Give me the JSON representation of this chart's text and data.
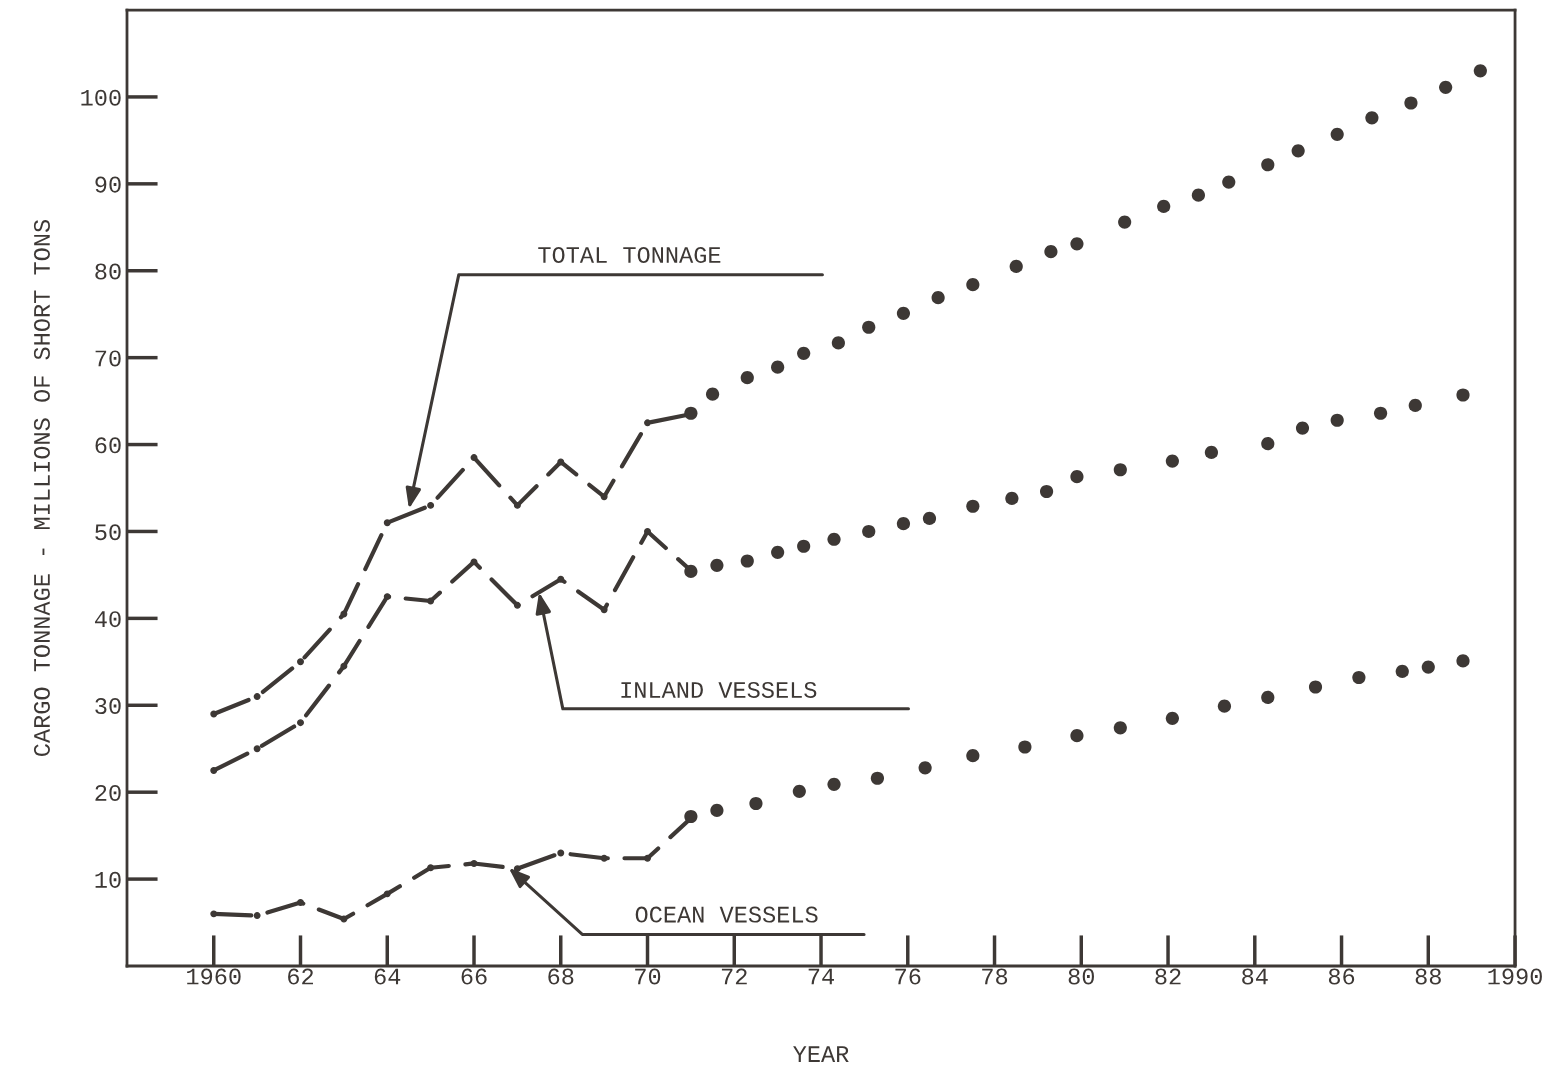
{
  "chart_data": {
    "type": "line",
    "xlabel": "YEAR",
    "ylabel": "CARGO TONNAGE - MILLIONS OF SHORT TONS",
    "xlim": [
      1958,
      1990
    ],
    "ylim": [
      0,
      110
    ],
    "xticks": [
      1960,
      {
        "value": 1962,
        "label": "62"
      },
      {
        "value": 1964,
        "label": "64"
      },
      {
        "value": 1966,
        "label": "66"
      },
      {
        "value": 1968,
        "label": "68"
      },
      {
        "value": 1970,
        "label": "70"
      },
      {
        "value": 1972,
        "label": "72"
      },
      {
        "value": 1974,
        "label": "74"
      },
      {
        "value": 1976,
        "label": "76"
      },
      {
        "value": 1978,
        "label": "78"
      },
      {
        "value": 1980,
        "label": "80"
      },
      {
        "value": 1982,
        "label": "82"
      },
      {
        "value": 1984,
        "label": "84"
      },
      {
        "value": 1986,
        "label": "86"
      },
      {
        "value": 1988,
        "label": "88"
      },
      1990
    ],
    "yticks": [
      10,
      20,
      30,
      40,
      50,
      60,
      70,
      80,
      90,
      100
    ],
    "grid": false,
    "legend": false,
    "series": [
      {
        "line_style": "dashed",
        "marker": "circle",
        "color": "#3d3835",
        "x": [
          1960,
          1961,
          1962,
          1963,
          1964,
          1965,
          1966,
          1967,
          1968,
          1969,
          1970,
          1971
        ],
        "values": [
          29,
          31,
          35,
          40.5,
          51,
          53,
          58.5,
          53,
          58,
          54,
          62.5,
          63.5
        ]
      },
      {
        "line_style": "dashed",
        "marker": "circle",
        "color": "#3d3835",
        "x": [
          1960,
          1961,
          1962,
          1963,
          1964,
          1965,
          1966,
          1967,
          1968,
          1969,
          1970,
          1971
        ],
        "values": [
          22.5,
          25,
          28,
          34.5,
          42.5,
          42,
          46.5,
          41.5,
          44.5,
          41,
          50,
          45.5
        ]
      },
      {
        "line_style": "dashed",
        "marker": "circle",
        "color": "#3d3835",
        "x": [
          1960,
          1961,
          1962,
          1963,
          1964,
          1965,
          1966,
          1967,
          1968,
          1969,
          1970,
          1971
        ],
        "values": [
          6,
          5.8,
          7.3,
          5.4,
          8.3,
          11.3,
          11.8,
          11.2,
          13,
          12.4,
          12.4,
          17
        ]
      },
      {
        "type": "scatter",
        "marker": "circle",
        "color": "#3d3835",
        "x": [
          1971.0,
          1971.5,
          1972.3,
          1973.0,
          1973.6,
          1974.4,
          1975.1,
          1975.9,
          1976.7,
          1977.5,
          1978.5,
          1979.3,
          1979.9,
          1981.0,
          1981.9,
          1982.7,
          1983.4,
          1984.3,
          1985.0,
          1985.9,
          1986.7,
          1987.6,
          1988.4,
          1989.2
        ],
        "values": [
          63.6,
          65.8,
          67.7,
          68.9,
          70.5,
          71.7,
          73.5,
          75.1,
          76.9,
          78.4,
          80.5,
          82.2,
          83.1,
          85.6,
          87.4,
          88.7,
          90.2,
          92.2,
          93.8,
          95.7,
          97.6,
          99.3,
          101.1,
          103.0
        ]
      },
      {
        "type": "scatter",
        "marker": "circle",
        "color": "#3d3835",
        "x": [
          1971.0,
          1971.6,
          1972.3,
          1973.0,
          1973.6,
          1974.3,
          1975.1,
          1975.9,
          1976.5,
          1977.5,
          1978.4,
          1979.2,
          1979.9,
          1980.9,
          1982.1,
          1983.0,
          1984.3,
          1985.1,
          1985.9,
          1986.9,
          1987.7,
          1988.8
        ],
        "values": [
          45.4,
          46.1,
          46.6,
          47.6,
          48.3,
          49.1,
          50.0,
          50.9,
          51.5,
          52.9,
          53.8,
          54.6,
          56.3,
          57.1,
          58.1,
          59.1,
          60.1,
          61.9,
          62.8,
          63.6,
          64.5,
          65.7
        ]
      },
      {
        "type": "scatter",
        "marker": "circle",
        "color": "#3d3835",
        "x": [
          1971.0,
          1971.6,
          1972.5,
          1973.5,
          1974.3,
          1975.3,
          1976.4,
          1977.5,
          1978.7,
          1979.9,
          1980.9,
          1982.1,
          1983.3,
          1984.3,
          1985.4,
          1986.4,
          1987.4,
          1988.0,
          1988.8
        ],
        "values": [
          17.2,
          17.9,
          18.7,
          20.1,
          20.9,
          21.6,
          22.8,
          24.2,
          25.2,
          26.5,
          27.4,
          28.5,
          29.9,
          30.9,
          32.1,
          33.2,
          33.9,
          34.4,
          35.1
        ]
      }
    ],
    "annotations": [
      {
        "text": "TOTAL TONNAGE",
        "x": 1964.5,
        "y": 52.6
      },
      {
        "text": "INLAND VESSELS",
        "x": 1967.5,
        "y": 43.0
      },
      {
        "text": "OCEAN VESSELS",
        "x": 1966.8,
        "y": 11.3
      }
    ]
  }
}
